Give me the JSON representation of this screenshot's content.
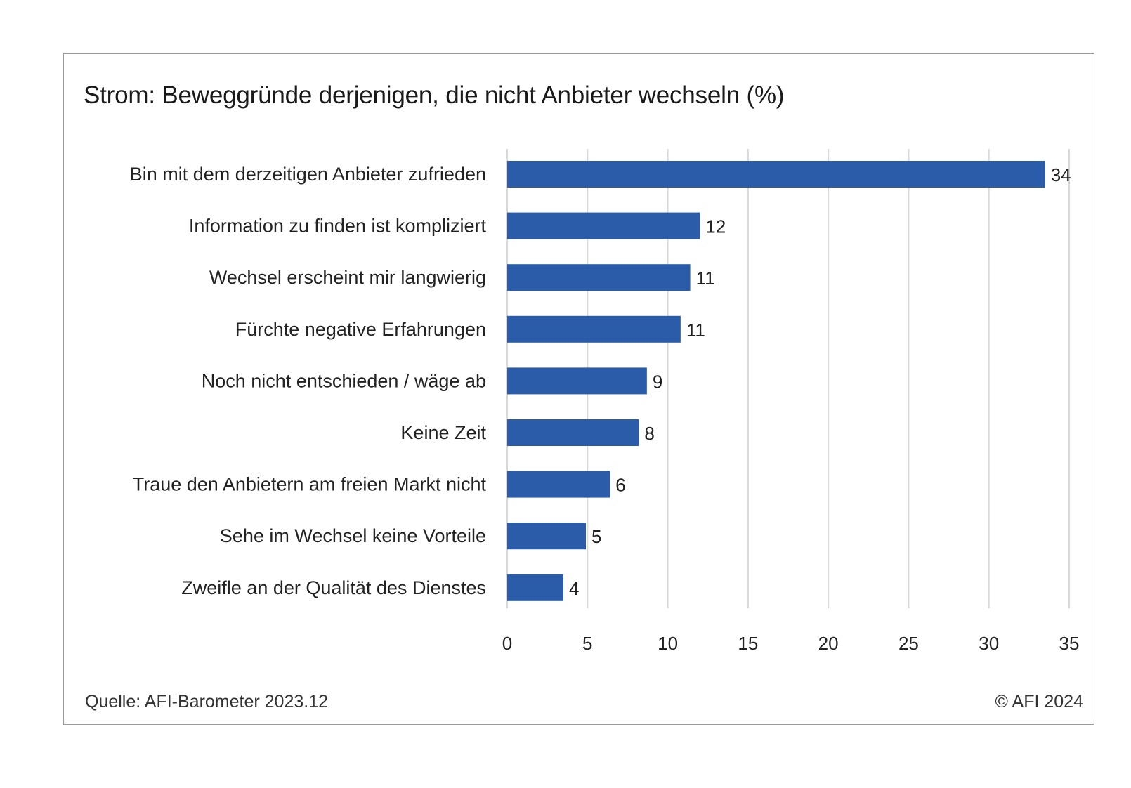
{
  "footer": {
    "source": "Quelle: AFI-Barometer 2023.12",
    "copyright": "© AFI 2024"
  },
  "chart_data": {
    "type": "bar",
    "orientation": "horizontal",
    "title": "Strom: Beweggründe derjenigen, die nicht Anbieter wechseln (%)",
    "xlabel": "",
    "ylabel": "",
    "categories": [
      "Bin mit dem derzeitigen Anbieter zufrieden",
      "Information zu finden ist kompliziert",
      "Wechsel erscheint mir langwierig",
      "Fürchte negative Erfahrungen",
      "Noch nicht entschieden / wäge ab",
      "Keine Zeit",
      "Traue den Anbietern am freien Markt nicht",
      "Sehe im Wechsel keine Vorteile",
      "Zweifle an der Qualität des Dienstes"
    ],
    "values": [
      33.5,
      12,
      11.4,
      10.8,
      8.7,
      8.2,
      6.4,
      4.9,
      3.5
    ],
    "data_labels": [
      "34",
      "12",
      "11",
      "11",
      "9",
      "8",
      "6",
      "5",
      "4"
    ],
    "xlim": [
      0,
      35
    ],
    "xticks": [
      "0",
      "5",
      "10",
      "15",
      "20",
      "25",
      "30",
      "35"
    ],
    "grid": "vertical",
    "legend": "none",
    "bar_color": "#2b5caa",
    "grid_color": "#d9d9d9"
  }
}
